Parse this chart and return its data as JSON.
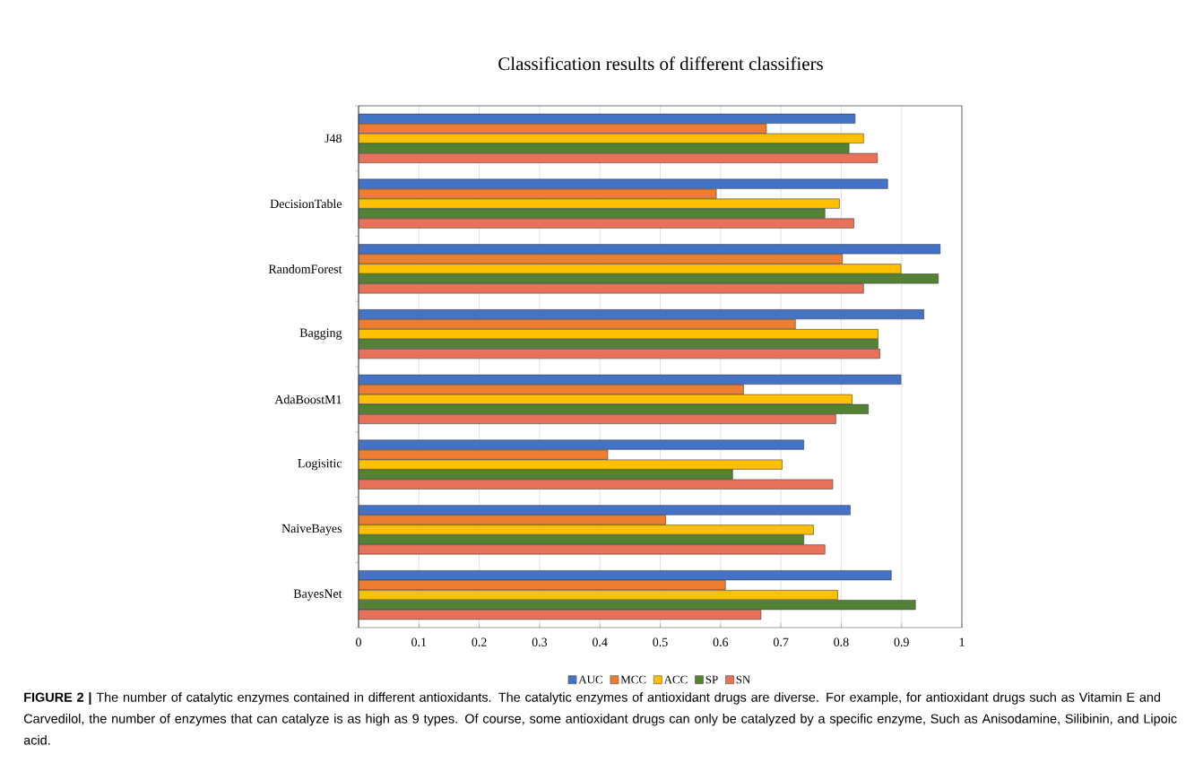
{
  "chart_data": {
    "type": "bar",
    "orientation": "horizontal",
    "title": "Classification results of different classifiers",
    "categories": [
      "J48",
      "DecisionTable",
      "RandomForest",
      "Bagging",
      "AdaBoostM1",
      "Logisitic",
      "NaiveBayes",
      "BayesNet"
    ],
    "series": [
      {
        "name": "AUC",
        "color": "#4472c4",
        "values": [
          0.823,
          0.877,
          0.964,
          0.937,
          0.899,
          0.738,
          0.815,
          0.883
        ]
      },
      {
        "name": "MCC",
        "color": "#ed7d31",
        "values": [
          0.676,
          0.593,
          0.802,
          0.724,
          0.638,
          0.413,
          0.509,
          0.608
        ]
      },
      {
        "name": "ACC",
        "color": "#ffc000",
        "values": [
          0.837,
          0.797,
          0.899,
          0.861,
          0.818,
          0.702,
          0.754,
          0.794
        ]
      },
      {
        "name": "SP",
        "color": "#548235",
        "values": [
          0.813,
          0.773,
          0.961,
          0.861,
          0.845,
          0.62,
          0.738,
          0.923
        ]
      },
      {
        "name": "SN",
        "color": "#e8715a",
        "values": [
          0.86,
          0.821,
          0.837,
          0.864,
          0.791,
          0.786,
          0.773,
          0.667
        ]
      }
    ],
    "xlim": [
      0,
      1
    ],
    "xticks": [
      0,
      0.1,
      0.2,
      0.3,
      0.4,
      0.5,
      0.6,
      0.7,
      0.8,
      0.9,
      1
    ],
    "grid": "x",
    "legend": "bottom",
    "annotations": [
      "**FIGURE 2 |** The number of catalytic enzymes contained in different antioxidants. The catalytic enzymes of antioxidant drugs are diverse. For example, for antioxidant drugs such as Vitamin E and Carvedilol, the number of enzymes that can catalyze is as high as 9 types. Of course, some antioxidant drugs can only be catalyzed by a specific enzyme, Such as Anisodamine, Silibinin, and Lipoic acid."
    ]
  }
}
